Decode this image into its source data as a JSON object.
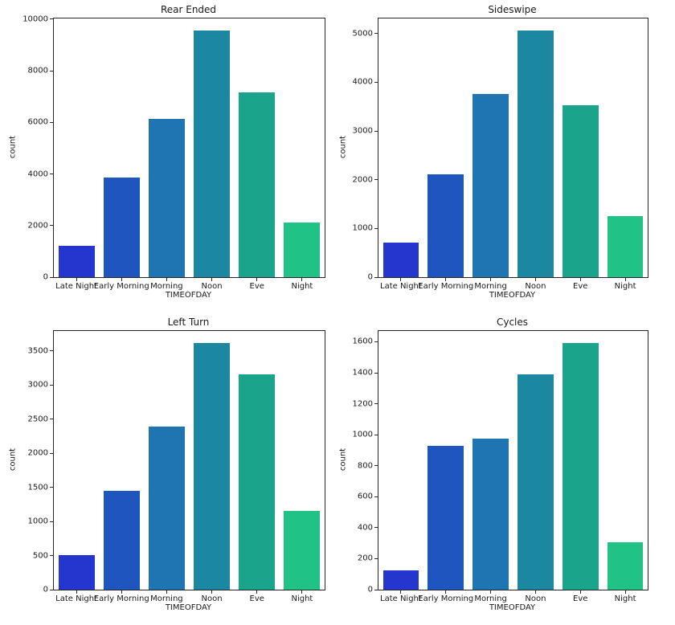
{
  "palette": {
    "bar_colors": [
      "#2436ce",
      "#1e55be",
      "#1f74b2",
      "#1c87a0",
      "#1aa48c",
      "#21c286"
    ],
    "spine_color": "#262626",
    "background": "#ffffff"
  },
  "chart_data": [
    {
      "type": "bar",
      "title": "Rear Ended",
      "categories": [
        "Late Night",
        "Early Morning",
        "Morning",
        "Noon",
        "Eve",
        "Night"
      ],
      "values": [
        1230,
        3860,
        6130,
        9550,
        7170,
        2110
      ],
      "xlabel": "TIMEOFDAY",
      "ylabel": "count",
      "yticks": [
        0,
        2000,
        4000,
        6000,
        8000,
        10000
      ],
      "ylim": [
        0,
        10030
      ],
      "grid": false,
      "legend": false
    },
    {
      "type": "bar",
      "title": "Sideswipe",
      "categories": [
        "Late Night",
        "Early Morning",
        "Morning",
        "Noon",
        "Eve",
        "Night"
      ],
      "values": [
        710,
        2110,
        3760,
        5060,
        3530,
        1260
      ],
      "xlabel": "TIMEOFDAY",
      "ylabel": "count",
      "yticks": [
        0,
        1000,
        2000,
        3000,
        4000,
        5000
      ],
      "ylim": [
        0,
        5310
      ],
      "grid": false,
      "legend": false
    },
    {
      "type": "bar",
      "title": "Left Turn",
      "categories": [
        "Late Night",
        "Early Morning",
        "Morning",
        "Noon",
        "Eve",
        "Night"
      ],
      "values": [
        510,
        1450,
        2390,
        3610,
        3160,
        1150
      ],
      "xlabel": "TIMEOFDAY",
      "ylabel": "count",
      "yticks": [
        0,
        500,
        1000,
        1500,
        2000,
        2500,
        3000,
        3500
      ],
      "ylim": [
        0,
        3790
      ],
      "grid": false,
      "legend": false
    },
    {
      "type": "bar",
      "title": "Cycles",
      "categories": [
        "Late Night",
        "Early Morning",
        "Morning",
        "Noon",
        "Eve",
        "Night"
      ],
      "values": [
        122,
        930,
        975,
        1390,
        1590,
        305
      ],
      "xlabel": "TIMEOFDAY",
      "ylabel": "count",
      "yticks": [
        0,
        200,
        400,
        600,
        800,
        1000,
        1200,
        1400,
        1600
      ],
      "ylim": [
        0,
        1670
      ],
      "grid": false,
      "legend": false
    }
  ]
}
